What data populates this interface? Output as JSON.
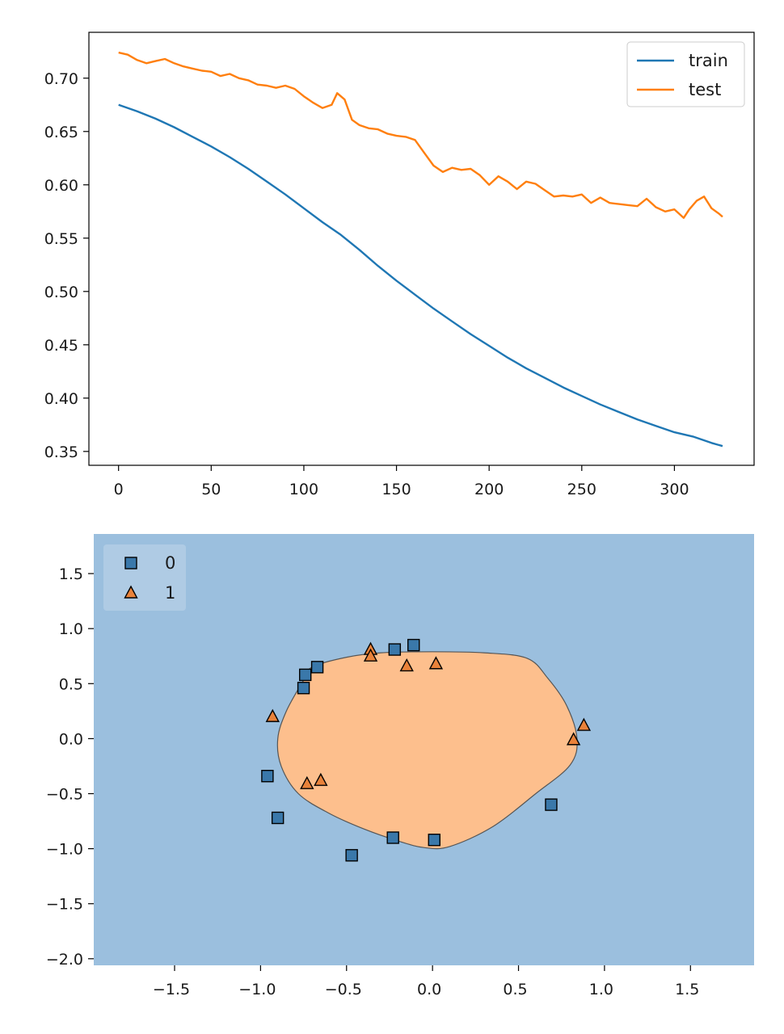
{
  "chart_data": [
    {
      "type": "line",
      "title": "",
      "xlabel": "",
      "ylabel": "",
      "xlim": [
        -16,
        343
      ],
      "ylim": [
        0.337,
        0.743
      ],
      "xticks": [
        0,
        50,
        100,
        150,
        200,
        250,
        300
      ],
      "yticks": [
        0.35,
        0.4,
        0.45,
        0.5,
        0.55,
        0.6,
        0.65,
        0.7
      ],
      "xtick_labels": [
        "0",
        "50",
        "100",
        "150",
        "200",
        "250",
        "300"
      ],
      "ytick_labels": [
        "0.35",
        "0.40",
        "0.45",
        "0.50",
        "0.55",
        "0.60",
        "0.65",
        "0.70"
      ],
      "grid": false,
      "legend_position": "top-right",
      "series": [
        {
          "name": "train",
          "color": "#1f77b4",
          "x": [
            0,
            10,
            20,
            30,
            40,
            50,
            60,
            70,
            80,
            90,
            100,
            110,
            120,
            130,
            140,
            150,
            160,
            170,
            180,
            190,
            200,
            210,
            220,
            230,
            240,
            250,
            260,
            270,
            280,
            290,
            300,
            310,
            320,
            326
          ],
          "y": [
            0.675,
            0.669,
            0.662,
            0.654,
            0.645,
            0.636,
            0.626,
            0.615,
            0.603,
            0.591,
            0.578,
            0.565,
            0.553,
            0.539,
            0.524,
            0.51,
            0.497,
            0.484,
            0.472,
            0.46,
            0.449,
            0.438,
            0.428,
            0.419,
            0.41,
            0.402,
            0.394,
            0.387,
            0.38,
            0.374,
            0.368,
            0.364,
            0.358,
            0.355
          ]
        },
        {
          "name": "test",
          "color": "#ff7f0e",
          "x": [
            0,
            5,
            10,
            15,
            20,
            25,
            30,
            35,
            40,
            45,
            50,
            55,
            60,
            65,
            70,
            75,
            80,
            85,
            90,
            95,
            100,
            105,
            110,
            115,
            118,
            122,
            126,
            130,
            135,
            140,
            145,
            150,
            155,
            160,
            165,
            170,
            175,
            180,
            185,
            190,
            195,
            200,
            205,
            210,
            215,
            220,
            225,
            230,
            235,
            240,
            245,
            250,
            255,
            260,
            265,
            270,
            275,
            280,
            285,
            290,
            295,
            300,
            305,
            308,
            312,
            316,
            320,
            324,
            326
          ],
          "y": [
            0.724,
            0.722,
            0.717,
            0.714,
            0.716,
            0.718,
            0.714,
            0.711,
            0.709,
            0.707,
            0.706,
            0.702,
            0.704,
            0.7,
            0.698,
            0.694,
            0.693,
            0.691,
            0.693,
            0.69,
            0.683,
            0.677,
            0.672,
            0.675,
            0.686,
            0.68,
            0.661,
            0.656,
            0.653,
            0.652,
            0.648,
            0.646,
            0.645,
            0.642,
            0.63,
            0.618,
            0.612,
            0.616,
            0.614,
            0.615,
            0.609,
            0.6,
            0.608,
            0.603,
            0.596,
            0.603,
            0.601,
            0.595,
            0.589,
            0.59,
            0.589,
            0.591,
            0.583,
            0.588,
            0.583,
            0.582,
            0.581,
            0.58,
            0.587,
            0.579,
            0.575,
            0.577,
            0.569,
            0.577,
            0.585,
            0.589,
            0.578,
            0.573,
            0.57
          ]
        }
      ]
    },
    {
      "type": "scatter",
      "title": "",
      "xlabel": "",
      "ylabel": "",
      "xlim": [
        -1.97,
        1.87
      ],
      "ylim": [
        -2.06,
        1.86
      ],
      "xticks": [
        -1.5,
        -1.0,
        -0.5,
        0.0,
        0.5,
        1.0,
        1.5
      ],
      "yticks": [
        1.5,
        1.0,
        0.5,
        0.0,
        -0.5,
        -1.0,
        -1.5,
        -2.0
      ],
      "xtick_labels": [
        "−1.5",
        "−1.0",
        "−0.5",
        "0.0",
        "0.5",
        "1.0",
        "1.5"
      ],
      "ytick_labels": [
        "1.5",
        "1.0",
        "0.5",
        "0.0",
        "−0.5",
        "−1.0",
        "−1.5",
        "−2.0"
      ],
      "grid": false,
      "legend_position": "top-left",
      "background_region_color": "#9bbfde",
      "decision_region_color": "#fdbf8d",
      "decision_boundary": [
        [
          -0.75,
          0.53
        ],
        [
          -0.7,
          0.65
        ],
        [
          -0.5,
          0.74
        ],
        [
          -0.3,
          0.78
        ],
        [
          0.0,
          0.79
        ],
        [
          0.3,
          0.78
        ],
        [
          0.55,
          0.73
        ],
        [
          0.67,
          0.55
        ],
        [
          0.78,
          0.3
        ],
        [
          0.84,
          0.0
        ],
        [
          0.8,
          -0.24
        ],
        [
          0.6,
          -0.5
        ],
        [
          0.35,
          -0.8
        ],
        [
          0.1,
          -0.98
        ],
        [
          -0.05,
          -0.99
        ],
        [
          -0.2,
          -0.93
        ],
        [
          -0.4,
          -0.82
        ],
        [
          -0.6,
          -0.68
        ],
        [
          -0.78,
          -0.5
        ],
        [
          -0.88,
          -0.25
        ],
        [
          -0.9,
          0.0
        ],
        [
          -0.85,
          0.25
        ]
      ],
      "series": [
        {
          "name": "0",
          "marker": "square",
          "color": "#3a78aa",
          "points": [
            [
              -0.11,
              0.85
            ],
            [
              -0.22,
              0.81
            ],
            [
              -0.67,
              0.65
            ],
            [
              -0.74,
              0.58
            ],
            [
              -0.75,
              0.46
            ],
            [
              -0.96,
              -0.34
            ],
            [
              -0.9,
              -0.72
            ],
            [
              -0.47,
              -1.06
            ],
            [
              -0.23,
              -0.9
            ],
            [
              0.01,
              -0.92
            ],
            [
              0.69,
              -0.6
            ]
          ]
        },
        {
          "name": "1",
          "marker": "triangle",
          "color": "#e9823a",
          "points": [
            [
              -0.36,
              0.81
            ],
            [
              -0.36,
              0.75
            ],
            [
              -0.15,
              0.66
            ],
            [
              0.02,
              0.68
            ],
            [
              -0.93,
              0.2
            ],
            [
              -0.73,
              -0.41
            ],
            [
              -0.65,
              -0.38
            ],
            [
              0.82,
              -0.01
            ],
            [
              0.88,
              0.12
            ]
          ]
        }
      ]
    }
  ]
}
